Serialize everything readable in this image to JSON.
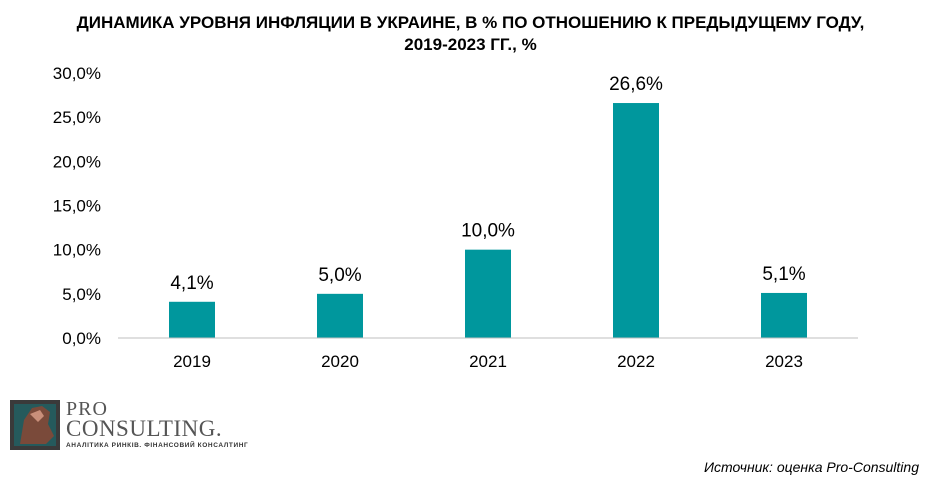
{
  "title": {
    "line1": "ДИНАМИКА УРОВНЯ ИНФЛЯЦИИ В УКРАИНЕ, В % ПО ОТНОШЕНИЮ К ПРЕДЫДУЩЕМУ ГОДУ,",
    "line2": "2019-2023 ГГ., %"
  },
  "colors": {
    "bar": "#00979D",
    "axis": "#BFBFBF"
  },
  "chart_data": {
    "type": "bar",
    "categories": [
      "2019",
      "2020",
      "2021",
      "2022",
      "2023"
    ],
    "values": [
      4.1,
      5.0,
      10.0,
      26.6,
      5.1
    ],
    "data_labels": [
      "4,1%",
      "5,0%",
      "10,0%",
      "26,6%",
      "5,1%"
    ],
    "y_ticks": [
      "0,0%",
      "5,0%",
      "10,0%",
      "15,0%",
      "20,0%",
      "25,0%",
      "30,0%"
    ],
    "ylim": [
      0,
      30
    ],
    "grid": false,
    "legend": "none"
  },
  "logo": {
    "pro": "PRO",
    "consulting": "CONSULTING.",
    "tagline": "АНАЛІТИКА РИНКІВ. ФІНАНСОВИЙ КОНСАЛТИНГ"
  },
  "source": "Источник: оценка Pro-Consulting"
}
